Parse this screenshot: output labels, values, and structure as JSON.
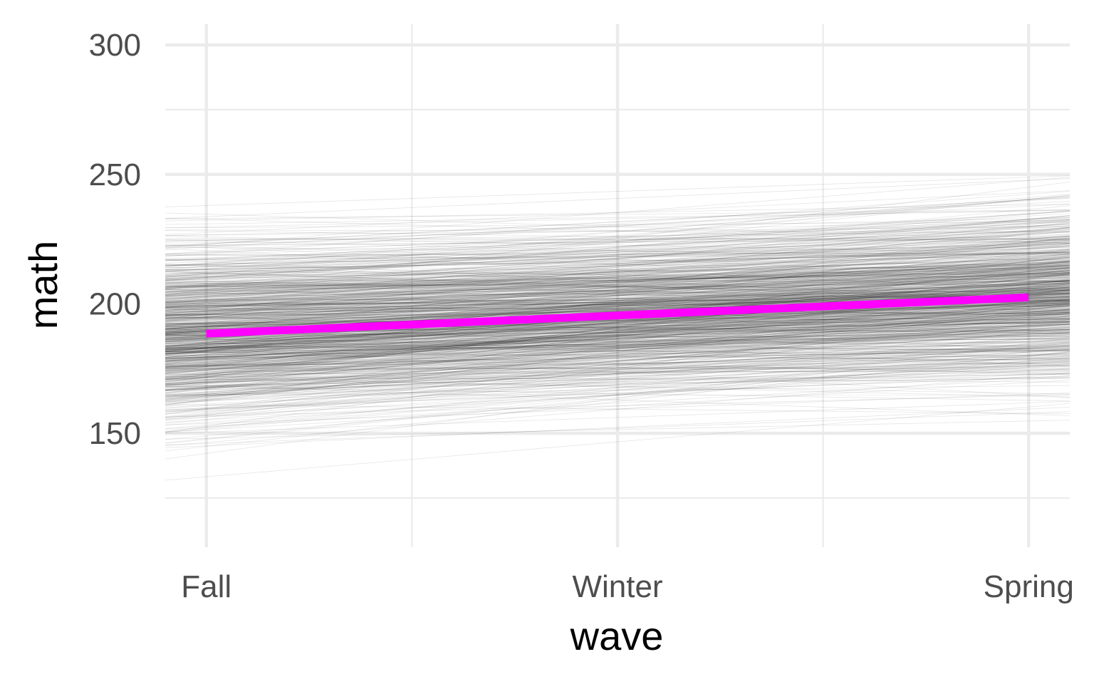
{
  "chart_data": {
    "type": "line",
    "title": "",
    "xlabel": "wave",
    "ylabel": "math",
    "categories": [
      "Fall",
      "Winter",
      "Spring"
    ],
    "x_extent": [
      -0.1,
      2.1
    ],
    "ylim": [
      106,
      308
    ],
    "y_major_ticks": [
      150,
      200,
      250,
      300
    ],
    "y_minor_ticks": [
      125,
      175,
      225,
      275
    ],
    "grid": true,
    "legend": "none",
    "mean_line": {
      "name": "",
      "color": "#ff00ff",
      "x": [
        0,
        2
      ],
      "y": [
        188.5,
        202.5
      ]
    },
    "individual_lines": {
      "name": "",
      "color": "#000000",
      "approximate_count": 900,
      "intercept_at_fall_mean": 188.5,
      "slope_per_wave_mean": 7.0,
      "intercept_sd": 17,
      "slope_sd": 5.5,
      "intercept_slope_correlation": -0.4
    },
    "colors": {
      "background": "#ffffff",
      "grid": "#ebebeb",
      "mean_line": "#ff00ff",
      "individual_lines": "#000000"
    }
  }
}
